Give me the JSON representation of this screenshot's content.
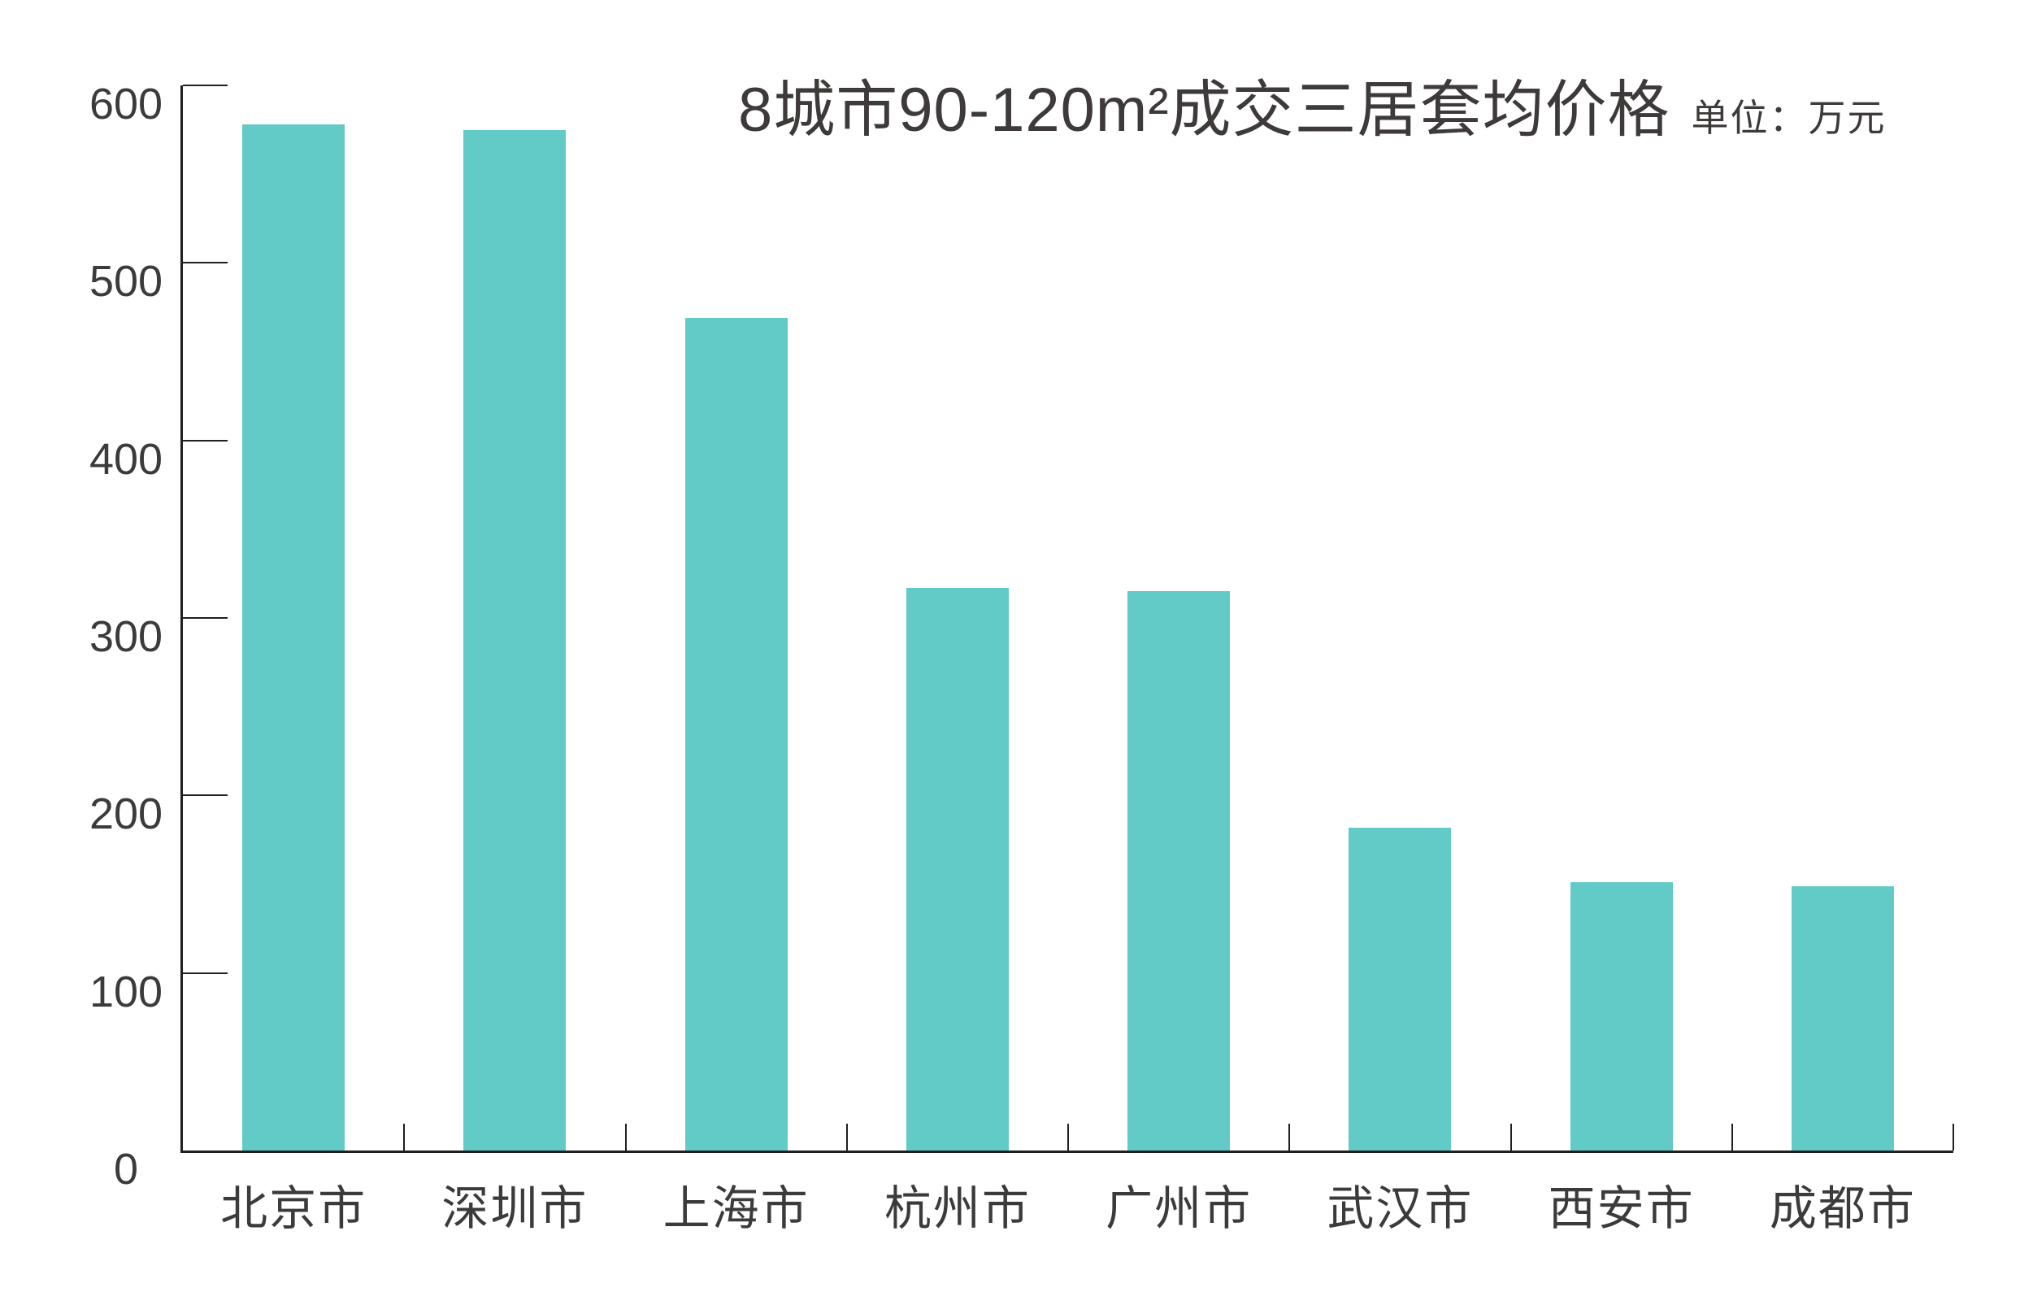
{
  "chart_data": {
    "type": "bar",
    "title": "8城市90-120m²成交三居套均价格",
    "unit_label": "单位：万元",
    "categories": [
      "北京市",
      "深圳市",
      "上海市",
      "杭州市",
      "广州市",
      "武汉市",
      "西安市",
      "成都市"
    ],
    "values": [
      578,
      575,
      469,
      317,
      315,
      182,
      151,
      149
    ],
    "ylabel": "",
    "xlabel": "",
    "ylim": [
      0,
      600
    ],
    "yticks": [
      0,
      100,
      200,
      300,
      400,
      500,
      600
    ],
    "grid": false,
    "legend_position": "none",
    "bar_color": "#62CBC7",
    "text_color": "#3B3B3B",
    "title_color": "#3E3A39",
    "axis_color": "#1F1F1F",
    "background_color": "#FFFFFF"
  }
}
